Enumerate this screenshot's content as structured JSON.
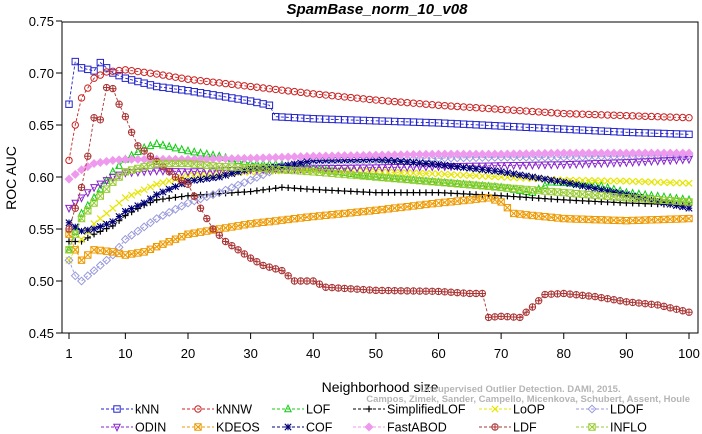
{
  "chart_data": {
    "type": "line",
    "title": "SpamBase_norm_10_v08",
    "xlabel": "Neighborhood size",
    "ylabel": "ROC AUC",
    "xlim": [
      1,
      100
    ],
    "ylim": [
      0.45,
      0.75
    ],
    "xticks": [
      1,
      10,
      20,
      30,
      40,
      50,
      60,
      70,
      80,
      90,
      100
    ],
    "yticks": [
      0.45,
      0.5,
      0.55,
      0.6,
      0.65,
      0.7,
      0.75
    ],
    "xtick_labels": [
      "1",
      "10",
      "20",
      "30",
      "40",
      "50",
      "60",
      "70",
      "80",
      "90",
      "100"
    ],
    "ytick_labels": [
      "0.45",
      "0.50",
      "0.55",
      "0.60",
      "0.65",
      "0.70",
      "0.75"
    ],
    "grid": false,
    "legend_position": "bottom",
    "watermark": [
      "Campos, Zimek, Sander, Campello, Micenkova, Schubert, Assent, Houle",
      "Unsupervised Outlier Detection. DAMI, 2015."
    ],
    "series": [
      {
        "name": "kNN",
        "color": "#2222cc",
        "marker": "square",
        "points": [
          [
            1,
            0.67
          ],
          [
            2,
            0.711
          ],
          [
            3,
            0.705
          ],
          [
            5,
            0.702
          ],
          [
            6,
            0.71
          ],
          [
            8,
            0.7
          ],
          [
            10,
            0.695
          ],
          [
            15,
            0.687
          ],
          [
            20,
            0.683
          ],
          [
            25,
            0.678
          ],
          [
            30,
            0.673
          ],
          [
            33,
            0.669
          ],
          [
            34,
            0.658
          ],
          [
            40,
            0.656
          ],
          [
            50,
            0.654
          ],
          [
            60,
            0.652
          ],
          [
            70,
            0.649
          ],
          [
            80,
            0.646
          ],
          [
            90,
            0.643
          ],
          [
            100,
            0.641
          ]
        ]
      },
      {
        "name": "kNNW",
        "color": "#cc2222",
        "marker": "circle",
        "points": [
          [
            1,
            0.616
          ],
          [
            2,
            0.65
          ],
          [
            3,
            0.676
          ],
          [
            5,
            0.695
          ],
          [
            7,
            0.701
          ],
          [
            10,
            0.703
          ],
          [
            15,
            0.699
          ],
          [
            20,
            0.694
          ],
          [
            30,
            0.687
          ],
          [
            40,
            0.68
          ],
          [
            50,
            0.674
          ],
          [
            60,
            0.669
          ],
          [
            70,
            0.665
          ],
          [
            80,
            0.661
          ],
          [
            90,
            0.659
          ],
          [
            100,
            0.657
          ]
        ]
      },
      {
        "name": "LOF",
        "color": "#11cc11",
        "marker": "triangle",
        "points": [
          [
            1,
            0.53
          ],
          [
            3,
            0.565
          ],
          [
            5,
            0.58
          ],
          [
            8,
            0.605
          ],
          [
            10,
            0.617
          ],
          [
            13,
            0.628
          ],
          [
            15,
            0.632
          ],
          [
            20,
            0.625
          ],
          [
            25,
            0.62
          ],
          [
            30,
            0.613
          ],
          [
            35,
            0.612
          ],
          [
            40,
            0.608
          ],
          [
            50,
            0.6
          ],
          [
            60,
            0.595
          ],
          [
            70,
            0.59
          ],
          [
            75,
            0.585
          ],
          [
            78,
            0.595
          ],
          [
            85,
            0.593
          ],
          [
            90,
            0.585
          ],
          [
            100,
            0.578
          ]
        ]
      },
      {
        "name": "SimplifiedLOF",
        "color": "#000000",
        "marker": "plus",
        "points": [
          [
            1,
            0.538
          ],
          [
            3,
            0.538
          ],
          [
            5,
            0.545
          ],
          [
            8,
            0.553
          ],
          [
            10,
            0.563
          ],
          [
            13,
            0.573
          ],
          [
            15,
            0.578
          ],
          [
            20,
            0.582
          ],
          [
            25,
            0.584
          ],
          [
            30,
            0.586
          ],
          [
            35,
            0.59
          ],
          [
            40,
            0.588
          ],
          [
            50,
            0.585
          ],
          [
            60,
            0.585
          ],
          [
            70,
            0.582
          ],
          [
            80,
            0.578
          ],
          [
            90,
            0.575
          ],
          [
            100,
            0.573
          ]
        ]
      },
      {
        "name": "LoOP",
        "color": "#e6e600",
        "marker": "x",
        "points": [
          [
            1,
            0.52
          ],
          [
            3,
            0.54
          ],
          [
            5,
            0.555
          ],
          [
            8,
            0.57
          ],
          [
            10,
            0.58
          ],
          [
            15,
            0.593
          ],
          [
            20,
            0.601
          ],
          [
            25,
            0.603
          ],
          [
            30,
            0.605
          ],
          [
            40,
            0.607
          ],
          [
            50,
            0.605
          ],
          [
            60,
            0.603
          ],
          [
            70,
            0.6
          ],
          [
            80,
            0.597
          ],
          [
            90,
            0.596
          ],
          [
            100,
            0.594
          ]
        ]
      },
      {
        "name": "LDOF",
        "color": "#9999dd",
        "marker": "diamond",
        "points": [
          [
            1,
            0.52
          ],
          [
            2,
            0.505
          ],
          [
            3,
            0.5
          ],
          [
            5,
            0.51
          ],
          [
            8,
            0.525
          ],
          [
            10,
            0.54
          ],
          [
            15,
            0.56
          ],
          [
            20,
            0.575
          ],
          [
            25,
            0.585
          ],
          [
            30,
            0.597
          ],
          [
            35,
            0.61
          ],
          [
            40,
            0.614
          ],
          [
            50,
            0.616
          ],
          [
            60,
            0.618
          ],
          [
            70,
            0.619
          ],
          [
            80,
            0.619
          ],
          [
            90,
            0.62
          ],
          [
            100,
            0.621
          ]
        ]
      },
      {
        "name": "ODIN",
        "color": "#8822cc",
        "marker": "triangle-down",
        "points": [
          [
            1,
            0.57
          ],
          [
            3,
            0.58
          ],
          [
            5,
            0.59
          ],
          [
            8,
            0.6
          ],
          [
            10,
            0.604
          ],
          [
            15,
            0.606
          ],
          [
            20,
            0.605
          ],
          [
            30,
            0.607
          ],
          [
            40,
            0.608
          ],
          [
            50,
            0.609
          ],
          [
            60,
            0.61
          ],
          [
            70,
            0.611
          ],
          [
            80,
            0.612
          ],
          [
            90,
            0.614
          ],
          [
            100,
            0.617
          ]
        ]
      },
      {
        "name": "KDEOS",
        "color": "#ee9900",
        "marker": "boxtimes",
        "points": [
          [
            1,
            0.545
          ],
          [
            2,
            0.53
          ],
          [
            3,
            0.52
          ],
          [
            5,
            0.53
          ],
          [
            8,
            0.528
          ],
          [
            10,
            0.525
          ],
          [
            13,
            0.528
          ],
          [
            15,
            0.533
          ],
          [
            20,
            0.545
          ],
          [
            25,
            0.55
          ],
          [
            30,
            0.555
          ],
          [
            40,
            0.562
          ],
          [
            50,
            0.568
          ],
          [
            60,
            0.575
          ],
          [
            65,
            0.578
          ],
          [
            68,
            0.58
          ],
          [
            70,
            0.576
          ],
          [
            72,
            0.565
          ],
          [
            75,
            0.563
          ],
          [
            80,
            0.56
          ],
          [
            90,
            0.558
          ],
          [
            100,
            0.56
          ]
        ]
      },
      {
        "name": "COF",
        "color": "#000077",
        "marker": "star",
        "points": [
          [
            1,
            0.556
          ],
          [
            3,
            0.548
          ],
          [
            5,
            0.55
          ],
          [
            8,
            0.557
          ],
          [
            10,
            0.567
          ],
          [
            13,
            0.575
          ],
          [
            15,
            0.583
          ],
          [
            20,
            0.596
          ],
          [
            25,
            0.6
          ],
          [
            30,
            0.608
          ],
          [
            35,
            0.61
          ],
          [
            40,
            0.616
          ],
          [
            50,
            0.617
          ],
          [
            60,
            0.612
          ],
          [
            70,
            0.605
          ],
          [
            80,
            0.595
          ],
          [
            90,
            0.583
          ],
          [
            100,
            0.57
          ]
        ]
      },
      {
        "name": "FastABOD",
        "color": "#ee99ee",
        "marker": "diamond-filled",
        "points": [
          [
            1,
            0.598
          ],
          [
            3,
            0.607
          ],
          [
            5,
            0.613
          ],
          [
            8,
            0.616
          ],
          [
            10,
            0.617
          ],
          [
            15,
            0.617
          ],
          [
            20,
            0.617
          ],
          [
            30,
            0.618
          ],
          [
            40,
            0.62
          ],
          [
            50,
            0.621
          ],
          [
            60,
            0.622
          ],
          [
            70,
            0.622
          ],
          [
            80,
            0.623
          ],
          [
            90,
            0.623
          ],
          [
            100,
            0.623
          ]
        ]
      },
      {
        "name": "LDF",
        "color": "#aa3333",
        "marker": "circleplus",
        "points": [
          [
            1,
            0.55
          ],
          [
            3,
            0.59
          ],
          [
            4,
            0.62
          ],
          [
            5,
            0.657
          ],
          [
            6,
            0.655
          ],
          [
            7,
            0.686
          ],
          [
            8,
            0.685
          ],
          [
            9,
            0.67
          ],
          [
            10,
            0.658
          ],
          [
            11,
            0.643
          ],
          [
            12,
            0.63
          ],
          [
            15,
            0.615
          ],
          [
            18,
            0.6
          ],
          [
            20,
            0.593
          ],
          [
            22,
            0.57
          ],
          [
            24,
            0.55
          ],
          [
            26,
            0.538
          ],
          [
            28,
            0.53
          ],
          [
            30,
            0.522
          ],
          [
            32,
            0.515
          ],
          [
            35,
            0.51
          ],
          [
            37,
            0.5
          ],
          [
            40,
            0.5
          ],
          [
            42,
            0.494
          ],
          [
            50,
            0.491
          ],
          [
            60,
            0.49
          ],
          [
            65,
            0.488
          ],
          [
            67,
            0.488
          ],
          [
            68,
            0.465
          ],
          [
            70,
            0.466
          ],
          [
            73,
            0.465
          ],
          [
            75,
            0.475
          ],
          [
            77,
            0.487
          ],
          [
            80,
            0.488
          ],
          [
            85,
            0.485
          ],
          [
            90,
            0.48
          ],
          [
            95,
            0.477
          ],
          [
            100,
            0.47
          ]
        ]
      },
      {
        "name": "INFLO",
        "color": "#99cc33",
        "marker": "boxtimes",
        "points": [
          [
            1,
            0.53
          ],
          [
            3,
            0.56
          ],
          [
            5,
            0.575
          ],
          [
            8,
            0.595
          ],
          [
            10,
            0.605
          ],
          [
            15,
            0.613
          ],
          [
            20,
            0.613
          ],
          [
            25,
            0.61
          ],
          [
            30,
            0.609
          ],
          [
            40,
            0.605
          ],
          [
            50,
            0.6
          ],
          [
            60,
            0.595
          ],
          [
            70,
            0.59
          ],
          [
            80,
            0.585
          ],
          [
            90,
            0.58
          ],
          [
            100,
            0.576
          ]
        ]
      }
    ]
  }
}
